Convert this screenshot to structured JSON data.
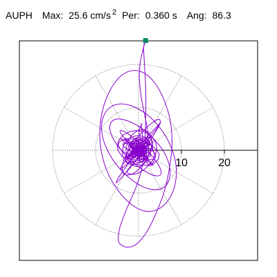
{
  "header": {
    "station": "AUPH",
    "max_label": "Max:",
    "max_value": "25.6 cm/s",
    "max_exp": "2",
    "per_label": "Per:",
    "per_value": "0.360 s",
    "ang_label": "Ang:",
    "ang_value": "86.3"
  },
  "colors": {
    "trace": "#8800cc",
    "marker": "#008866",
    "frame": "#000000",
    "grid": "#666666"
  },
  "chart_data": {
    "type": "scatter",
    "title": "AUPH  Max: 25.6 cm/s² Per: 0.360 s Ang: 86.3",
    "xlabel": "",
    "ylabel": "",
    "grid": true,
    "radial_ticks": [
      {
        "value": 10,
        "label": "10"
      },
      {
        "value": 20,
        "label": "20"
      }
    ],
    "max_point": {
      "x": 1.66,
      "y": 25.55
    },
    "max_radius": 25.6,
    "angle_deg": 86.3,
    "trace_color": "#8800cc",
    "marker_color": "#008866",
    "trace": {
      "x": [
        0,
        0.5,
        1.6,
        2.5,
        2.1,
        0.4,
        -1.5,
        -2.6,
        -2.0,
        -0.2,
        1.8,
        3.0,
        2.4,
        0.6,
        -1.9,
        -3.8,
        -4.2,
        -2.8,
        0.2,
        3.4,
        5.1,
        4.6,
        2.0,
        -1.6,
        -4.4,
        -5.2,
        -3.8,
        -0.6,
        2.8,
        4.9,
        4.6,
        2.0,
        -1.4,
        -3.6,
        -3.5,
        -1.2,
        1.4,
        3.0,
        2.6,
        0.5,
        -1.8,
        -2.9,
        -2.2,
        -0.3,
        1.6,
        2.4,
        1.7,
        0.1,
        -1.4,
        -2.0,
        -1.3,
        0.2,
        1.4,
        1.6,
        0.6,
        -0.8,
        -1.6,
        -1.2,
        0,
        1.2,
        2.0,
        2.1,
        1.4,
        0.6,
        0.2,
        0.4,
        1.0,
        1.4,
        1.5,
        1.4,
        1.2,
        1.3,
        1.5,
        1.7,
        1.7,
        1.6,
        1.3,
        0.6,
        -0.8,
        -2.4,
        -3.6,
        -4.4,
        -4.7,
        -4.6,
        -3.8,
        -2.6,
        -1.0,
        0.6,
        2.4,
        4.2,
        6.0,
        7.2,
        7.8,
        7.4,
        6.0,
        4.0,
        1.6,
        -1.2,
        -4.0,
        -6.4,
        -8.2,
        -9.0,
        -8.6,
        -7.0,
        -4.4,
        -1.4,
        1.6,
        4.4,
        6.8,
        8.4,
        8.8,
        7.8,
        5.6,
        2.6,
        -0.8,
        -4.0,
        -6.6,
        -8.2,
        -8.6,
        -7.6,
        -5.4,
        -2.4,
        0.8,
        3.8,
        6.0,
        7.2,
        7.2,
        5.8,
        3.2,
        0,
        -3.0,
        -5.4,
        -6.6,
        -6.4,
        -4.8,
        -2.2,
        0.8,
        3.4,
        5.0,
        5.2,
        4.0,
        1.8,
        -0.8,
        -3.0,
        -4.2,
        -4.0,
        -2.6,
        -0.4,
        1.8,
        3.2,
        3.4,
        2.4,
        0.6,
        -1.4,
        -2.8,
        -3.0,
        -2.0,
        -0.4,
        1.2,
        2.2,
        2.2,
        1.2,
        -0.2,
        -1.4,
        -1.8,
        -1.2,
        0,
        1.0,
        1.4,
        1.0,
        0.2,
        -0.6,
        -0.8,
        -0.4,
        0
      ],
      "y": [
        0,
        0.9,
        1.8,
        2.2,
        1.4,
        -0.2,
        -1.6,
        -2.0,
        -1.0,
        0.8,
        2.6,
        3.4,
        2.6,
        0.4,
        -2.4,
        -4.2,
        -4.2,
        -2.2,
        1.2,
        4.6,
        6.4,
        5.6,
        2.2,
        -2.2,
        -6.0,
        -7.6,
        -6.2,
        -2.4,
        2.4,
        6.0,
        7.2,
        5.4,
        1.4,
        -2.8,
        -5.4,
        -5.4,
        -2.8,
        0.8,
        3.8,
        4.8,
        3.2,
        0.2,
        -2.6,
        -3.8,
        -2.8,
        -0.4,
        2.0,
        3.0,
        2.2,
        0.2,
        -1.8,
        -2.4,
        -1.4,
        0.4,
        1.8,
        2.0,
        0.8,
        -0.8,
        -1.4,
        -0.6,
        1.6,
        4.6,
        8.4,
        12.6,
        16.8,
        20.4,
        23.2,
        24.8,
        25.55,
        25.2,
        23.8,
        21.4,
        18.0,
        13.8,
        9.2,
        4.4,
        -0.4,
        -5.0,
        -9.2,
        -12.8,
        -15.8,
        -18.2,
        -20.0,
        -21.4,
        -22.2,
        -22.6,
        -22.2,
        -20.8,
        -18.2,
        -14.4,
        -9.6,
        -4.2,
        1.4,
        6.8,
        11.6,
        15.4,
        17.8,
        18.6,
        17.4,
        14.4,
        10.0,
        4.8,
        -0.6,
        -5.6,
        -9.8,
        -12.8,
        -14.2,
        -13.8,
        -11.8,
        -8.4,
        -4.2,
        0.2,
        4.4,
        7.8,
        10.0,
        10.8,
        10.0,
        7.8,
        4.6,
        0.8,
        -3.0,
        -6.2,
        -8.4,
        -9.2,
        -8.6,
        -6.6,
        -3.6,
        -0.2,
        3.0,
        5.6,
        7.0,
        7.2,
        6.0,
        3.8,
        1.0,
        -2.0,
        -4.4,
        -5.8,
        -5.8,
        -4.6,
        -2.4,
        0.2,
        2.6,
        4.2,
        4.6,
        3.8,
        2.0,
        -0.2,
        -2.2,
        -3.4,
        -3.4,
        -2.4,
        -0.8,
        1.0,
        2.4,
        2.8,
        2.2,
        0.8,
        -0.8,
        -1.8,
        -2.0,
        -1.4,
        -0.2,
        1.0,
        1.6,
        1.4,
        0.6,
        -0.4,
        -1.0,
        -1.0,
        -0.4,
        0.2,
        0.6,
        0.4,
        0
      ]
    }
  }
}
